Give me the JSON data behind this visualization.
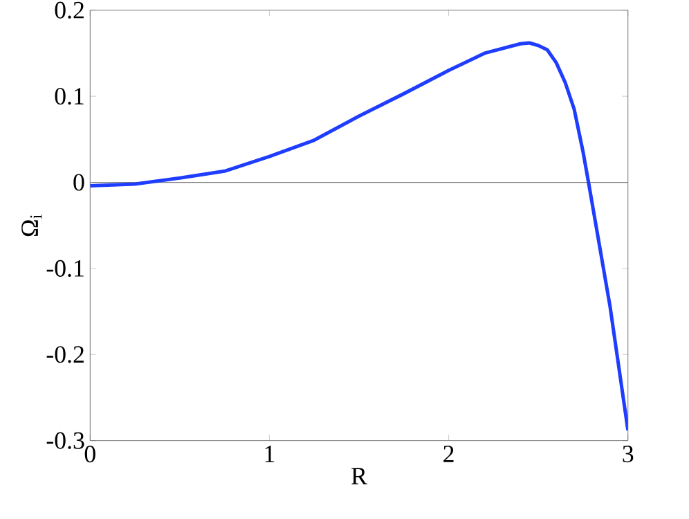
{
  "chart_data": {
    "type": "line",
    "xlabel": "R",
    "ylabel": "Ω$_{i}$",
    "xlim": [
      0,
      3
    ],
    "ylim": [
      -0.3,
      0.2
    ],
    "xticks": [
      0,
      1,
      2,
      3
    ],
    "yticks": [
      -0.3,
      -0.2,
      -0.1,
      0,
      0.1,
      0.2
    ],
    "grid": false,
    "ref_lines": [
      {
        "axis": "y",
        "value": 0,
        "color": "#808080",
        "line_style": "solid"
      }
    ],
    "series": [
      {
        "color": "#1f3dff",
        "x": [
          0,
          0.25,
          0.5,
          0.75,
          1,
          1.25,
          1.5,
          1.75,
          2,
          2.2,
          2.4,
          2.45,
          2.5,
          2.55,
          2.6,
          2.65,
          2.7,
          2.75,
          2.78,
          2.9,
          3.0
        ],
        "values": [
          -0.004,
          -0.002,
          0.005,
          0.013,
          0.03,
          0.049,
          0.077,
          0.103,
          0.13,
          0.15,
          0.161,
          0.162,
          0.159,
          0.154,
          0.139,
          0.116,
          0.085,
          0.035,
          0,
          -0.144,
          -0.288
        ]
      }
    ]
  }
}
